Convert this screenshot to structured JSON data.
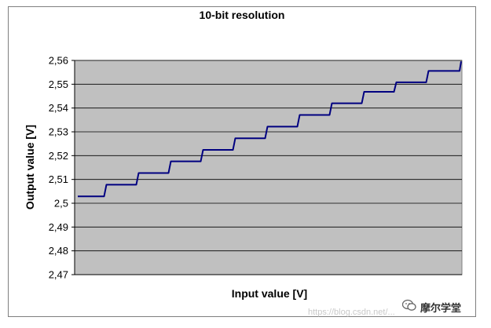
{
  "chart_data": {
    "type": "line",
    "title": "10-bit resolution",
    "xlabel": "Input value [V]",
    "ylabel": "Output value [V]",
    "ylim": [
      2.47,
      2.56
    ],
    "yticks": [
      "2,47",
      "2,48",
      "2,49",
      "2,5",
      "2,51",
      "2,52",
      "2,53",
      "2,54",
      "2,55",
      "2,56"
    ],
    "grid": true,
    "legend": "none",
    "series": [
      {
        "color": "#000080",
        "steps": [
          2.5029,
          2.5078,
          2.5127,
          2.5176,
          2.5224,
          2.5273,
          2.5322,
          2.5371,
          2.542,
          2.5468,
          2.5508,
          2.5556
        ]
      }
    ]
  },
  "watermark": {
    "url_text": "https://blog.csdn.net/...",
    "brand_text": "摩尔学堂",
    "icon": "wechat-icon"
  },
  "colors": {
    "plot_bg": "#c0c0c0",
    "line": "#000080",
    "grid": "#000000"
  }
}
